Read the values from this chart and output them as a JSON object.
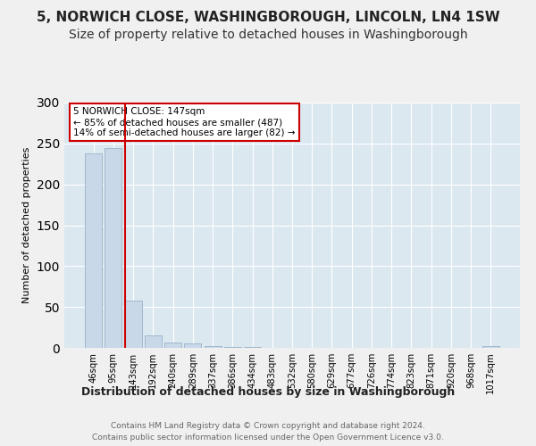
{
  "title": "5, NORWICH CLOSE, WASHINGBOROUGH, LINCOLN, LN4 1SW",
  "subtitle": "Size of property relative to detached houses in Washingborough",
  "xlabel": "Distribution of detached houses by size in Washingborough",
  "ylabel": "Number of detached properties",
  "footer_line1": "Contains HM Land Registry data © Crown copyright and database right 2024.",
  "footer_line2": "Contains public sector information licensed under the Open Government Licence v3.0.",
  "bar_labels": [
    "46sqm",
    "95sqm",
    "143sqm",
    "192sqm",
    "240sqm",
    "289sqm",
    "337sqm",
    "386sqm",
    "434sqm",
    "483sqm",
    "532sqm",
    "580sqm",
    "629sqm",
    "677sqm",
    "726sqm",
    "774sqm",
    "823sqm",
    "871sqm",
    "920sqm",
    "968sqm",
    "1017sqm"
  ],
  "bar_values": [
    238,
    244,
    58,
    15,
    7,
    5,
    2,
    1,
    1,
    0,
    0,
    0,
    0,
    0,
    0,
    0,
    0,
    0,
    0,
    0,
    2
  ],
  "bar_color": "#c8d8e8",
  "bar_edgecolor": "#a0b8cc",
  "marker_index": 2,
  "annotation_line1": "5 NORWICH CLOSE: 147sqm",
  "annotation_line2": "← 85% of detached houses are smaller (487)",
  "annotation_line3": "14% of semi-detached houses are larger (82) →",
  "marker_color": "#cc0000",
  "ylim": [
    0,
    300
  ],
  "yticks": [
    0,
    50,
    100,
    150,
    200,
    250,
    300
  ],
  "bg_color": "#f0f0f0",
  "plot_bg_color": "#dce8f0",
  "title_fontsize": 11,
  "subtitle_fontsize": 10,
  "annot_fontsize": 7.5
}
